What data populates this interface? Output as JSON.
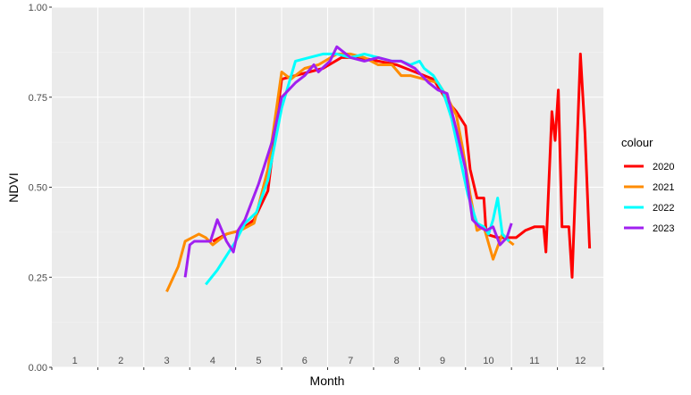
{
  "chart_data": {
    "type": "line",
    "title": "",
    "xlabel": "Month",
    "ylabel": "NDVI",
    "xlim": [
      0.5,
      12.5
    ],
    "ylim": [
      0,
      1
    ],
    "x_tick_labels": [
      "1",
      "2",
      "3",
      "4",
      "5",
      "6",
      "7",
      "8",
      "9",
      "10",
      "11",
      "12"
    ],
    "y_ticks": [
      0,
      0.25,
      0.5,
      0.75,
      1
    ],
    "y_tick_labels": [
      "0.00",
      "0.25",
      "0.50",
      "0.75",
      "1.00"
    ],
    "grid": true,
    "legend": {
      "title": "colour",
      "position": "right"
    },
    "series": [
      {
        "name": "2020",
        "color": "#ff0000",
        "points": [
          [
            4.0,
            0.35
          ],
          [
            4.3,
            0.37
          ],
          [
            4.6,
            0.38
          ],
          [
            4.9,
            0.41
          ],
          [
            5.2,
            0.49
          ],
          [
            5.5,
            0.8
          ],
          [
            5.8,
            0.81
          ],
          [
            6.1,
            0.82
          ],
          [
            6.4,
            0.83
          ],
          [
            6.8,
            0.86
          ],
          [
            7.2,
            0.86
          ],
          [
            7.6,
            0.85
          ],
          [
            8.0,
            0.84
          ],
          [
            8.4,
            0.82
          ],
          [
            8.8,
            0.8
          ],
          [
            9.1,
            0.74
          ],
          [
            9.3,
            0.71
          ],
          [
            9.5,
            0.67
          ],
          [
            9.6,
            0.55
          ],
          [
            9.75,
            0.47
          ],
          [
            9.9,
            0.47
          ],
          [
            9.95,
            0.37
          ],
          [
            10.2,
            0.36
          ],
          [
            10.4,
            0.36
          ],
          [
            10.6,
            0.36
          ],
          [
            10.8,
            0.38
          ],
          [
            11.0,
            0.39
          ],
          [
            11.2,
            0.39
          ],
          [
            11.25,
            0.32
          ],
          [
            11.38,
            0.71
          ],
          [
            11.45,
            0.63
          ],
          [
            11.52,
            0.77
          ],
          [
            11.6,
            0.39
          ],
          [
            11.75,
            0.39
          ],
          [
            11.82,
            0.25
          ],
          [
            12.0,
            0.87
          ],
          [
            12.1,
            0.65
          ],
          [
            12.2,
            0.33
          ]
        ]
      },
      {
        "name": "2021",
        "color": "#ff8c00",
        "points": [
          [
            3.0,
            0.21
          ],
          [
            3.25,
            0.28
          ],
          [
            3.4,
            0.35
          ],
          [
            3.55,
            0.36
          ],
          [
            3.7,
            0.37
          ],
          [
            3.85,
            0.36
          ],
          [
            4.0,
            0.34
          ],
          [
            4.3,
            0.37
          ],
          [
            4.6,
            0.38
          ],
          [
            4.9,
            0.4
          ],
          [
            5.2,
            0.55
          ],
          [
            5.5,
            0.82
          ],
          [
            5.7,
            0.8
          ],
          [
            6.0,
            0.83
          ],
          [
            6.3,
            0.84
          ],
          [
            6.7,
            0.87
          ],
          [
            7.0,
            0.87
          ],
          [
            7.3,
            0.86
          ],
          [
            7.6,
            0.84
          ],
          [
            7.9,
            0.84
          ],
          [
            8.1,
            0.81
          ],
          [
            8.3,
            0.81
          ],
          [
            8.6,
            0.8
          ],
          [
            8.9,
            0.79
          ],
          [
            9.1,
            0.75
          ],
          [
            9.3,
            0.7
          ],
          [
            9.45,
            0.6
          ],
          [
            9.6,
            0.48
          ],
          [
            9.75,
            0.38
          ],
          [
            9.9,
            0.39
          ],
          [
            10.1,
            0.3
          ],
          [
            10.3,
            0.37
          ],
          [
            10.45,
            0.35
          ],
          [
            10.55,
            0.34
          ]
        ]
      },
      {
        "name": "2022",
        "color": "#00ffff",
        "points": [
          [
            3.85,
            0.23
          ],
          [
            4.1,
            0.27
          ],
          [
            4.3,
            0.31
          ],
          [
            4.5,
            0.35
          ],
          [
            4.7,
            0.4
          ],
          [
            4.95,
            0.43
          ],
          [
            5.2,
            0.52
          ],
          [
            5.5,
            0.72
          ],
          [
            5.8,
            0.85
          ],
          [
            6.1,
            0.86
          ],
          [
            6.4,
            0.87
          ],
          [
            6.7,
            0.87
          ],
          [
            7.0,
            0.86
          ],
          [
            7.3,
            0.87
          ],
          [
            7.6,
            0.86
          ],
          [
            7.9,
            0.85
          ],
          [
            8.1,
            0.85
          ],
          [
            8.3,
            0.84
          ],
          [
            8.5,
            0.85
          ],
          [
            8.6,
            0.83
          ],
          [
            8.8,
            0.81
          ],
          [
            9.0,
            0.77
          ],
          [
            9.2,
            0.69
          ],
          [
            9.4,
            0.57
          ],
          [
            9.55,
            0.48
          ],
          [
            9.75,
            0.4
          ],
          [
            9.9,
            0.39
          ],
          [
            10.0,
            0.37
          ],
          [
            10.1,
            0.41
          ],
          [
            10.2,
            0.47
          ],
          [
            10.3,
            0.37
          ],
          [
            10.45,
            0.35
          ]
        ]
      },
      {
        "name": "2023",
        "color": "#a020f0",
        "points": [
          [
            3.4,
            0.25
          ],
          [
            3.5,
            0.34
          ],
          [
            3.6,
            0.35
          ],
          [
            3.75,
            0.35
          ],
          [
            3.95,
            0.35
          ],
          [
            4.1,
            0.41
          ],
          [
            4.3,
            0.35
          ],
          [
            4.45,
            0.32
          ],
          [
            4.55,
            0.38
          ],
          [
            4.7,
            0.41
          ],
          [
            5.0,
            0.51
          ],
          [
            5.3,
            0.63
          ],
          [
            5.5,
            0.75
          ],
          [
            5.8,
            0.79
          ],
          [
            6.0,
            0.81
          ],
          [
            6.2,
            0.84
          ],
          [
            6.3,
            0.82
          ],
          [
            6.55,
            0.85
          ],
          [
            6.7,
            0.89
          ],
          [
            7.0,
            0.86
          ],
          [
            7.3,
            0.85
          ],
          [
            7.6,
            0.86
          ],
          [
            7.9,
            0.85
          ],
          [
            8.1,
            0.85
          ],
          [
            8.4,
            0.83
          ],
          [
            8.7,
            0.79
          ],
          [
            8.9,
            0.77
          ],
          [
            9.1,
            0.76
          ],
          [
            9.3,
            0.66
          ],
          [
            9.5,
            0.55
          ],
          [
            9.65,
            0.41
          ],
          [
            9.8,
            0.39
          ],
          [
            9.95,
            0.38
          ],
          [
            10.1,
            0.39
          ],
          [
            10.25,
            0.34
          ],
          [
            10.4,
            0.36
          ],
          [
            10.5,
            0.4
          ]
        ]
      }
    ]
  }
}
